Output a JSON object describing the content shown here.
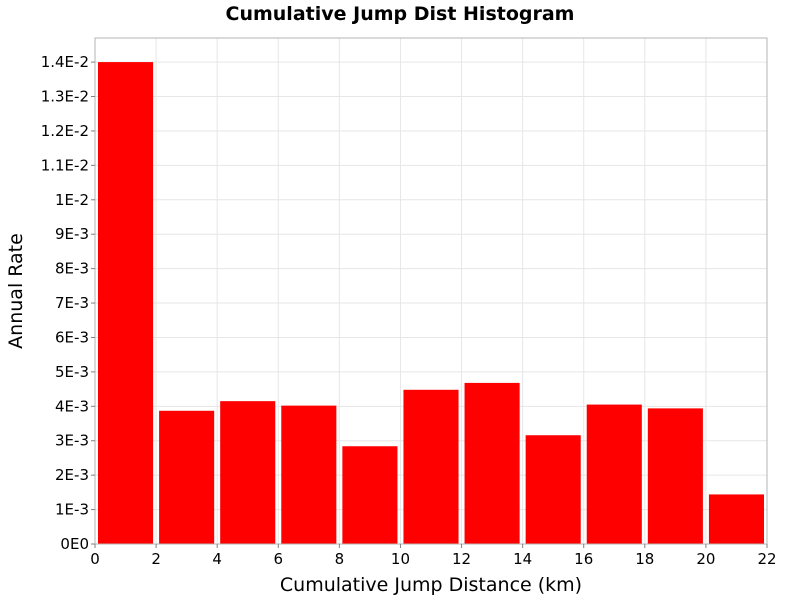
{
  "chart_data": {
    "type": "bar",
    "title": "Cumulative Jump Dist Histogram",
    "xlabel": "Cumulative Jump Distance (km)",
    "ylabel": "Annual Rate",
    "xlim": [
      0,
      22
    ],
    "ylim": [
      0,
      0.0147
    ],
    "grid": true,
    "bar_color": "#ff0000",
    "x_ticks": [
      {
        "value": 0,
        "label": "0"
      },
      {
        "value": 2,
        "label": "2"
      },
      {
        "value": 4,
        "label": "4"
      },
      {
        "value": 6,
        "label": "6"
      },
      {
        "value": 8,
        "label": "8"
      },
      {
        "value": 10,
        "label": "10"
      },
      {
        "value": 12,
        "label": "12"
      },
      {
        "value": 14,
        "label": "14"
      },
      {
        "value": 16,
        "label": "16"
      },
      {
        "value": 18,
        "label": "18"
      },
      {
        "value": 20,
        "label": "20"
      },
      {
        "value": 22,
        "label": "22"
      }
    ],
    "y_ticks": [
      {
        "value": 0,
        "label": "0E0"
      },
      {
        "value": 0.001,
        "label": "1E-3"
      },
      {
        "value": 0.002,
        "label": "2E-3"
      },
      {
        "value": 0.003,
        "label": "3E-3"
      },
      {
        "value": 0.004,
        "label": "4E-3"
      },
      {
        "value": 0.005,
        "label": "5E-3"
      },
      {
        "value": 0.006,
        "label": "6E-3"
      },
      {
        "value": 0.007,
        "label": "7E-3"
      },
      {
        "value": 0.008,
        "label": "8E-3"
      },
      {
        "value": 0.009,
        "label": "9E-3"
      },
      {
        "value": 0.01,
        "label": "1E-2"
      },
      {
        "value": 0.011,
        "label": "1.1E-2"
      },
      {
        "value": 0.012,
        "label": "1.2E-2"
      },
      {
        "value": 0.013,
        "label": "1.3E-2"
      },
      {
        "value": 0.014,
        "label": "1.4E-2"
      }
    ],
    "bins": [
      {
        "x0": 0,
        "x1": 2,
        "value": 0.014
      },
      {
        "x0": 2,
        "x1": 4,
        "value": 0.00387
      },
      {
        "x0": 4,
        "x1": 6,
        "value": 0.00415
      },
      {
        "x0": 6,
        "x1": 8,
        "value": 0.00402
      },
      {
        "x0": 8,
        "x1": 10,
        "value": 0.00284
      },
      {
        "x0": 10,
        "x1": 12,
        "value": 0.00448
      },
      {
        "x0": 12,
        "x1": 14,
        "value": 0.00468
      },
      {
        "x0": 14,
        "x1": 16,
        "value": 0.00316
      },
      {
        "x0": 16,
        "x1": 18,
        "value": 0.00405
      },
      {
        "x0": 18,
        "x1": 20,
        "value": 0.00394
      },
      {
        "x0": 20,
        "x1": 22,
        "value": 0.00144
      }
    ]
  }
}
